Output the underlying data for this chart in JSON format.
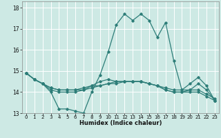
{
  "title": "",
  "xlabel": "Humidex (Indice chaleur)",
  "ylabel": "",
  "background_color": "#cde9e4",
  "grid_color": "#ffffff",
  "line_color": "#2d7d78",
  "xlim": [
    -0.5,
    23.5
  ],
  "ylim": [
    13.0,
    18.3
  ],
  "yticks": [
    13,
    14,
    15,
    16,
    17,
    18
  ],
  "xticks": [
    0,
    1,
    2,
    3,
    4,
    5,
    6,
    7,
    8,
    9,
    10,
    11,
    12,
    13,
    14,
    15,
    16,
    17,
    18,
    19,
    20,
    21,
    22,
    23
  ],
  "series": [
    [
      14.9,
      14.6,
      14.4,
      14.0,
      13.2,
      13.2,
      13.1,
      13.0,
      14.0,
      14.8,
      15.9,
      17.2,
      17.7,
      17.4,
      17.7,
      17.4,
      16.6,
      17.3,
      15.5,
      14.1,
      14.4,
      14.7,
      14.3,
      13.6
    ],
    [
      14.9,
      14.6,
      14.4,
      14.2,
      14.1,
      14.1,
      14.1,
      14.1,
      14.2,
      14.3,
      14.4,
      14.5,
      14.5,
      14.5,
      14.5,
      14.4,
      14.3,
      14.2,
      14.1,
      14.1,
      14.1,
      14.1,
      13.9,
      13.7
    ],
    [
      14.9,
      14.6,
      14.4,
      14.2,
      14.1,
      14.1,
      14.1,
      14.2,
      14.3,
      14.3,
      14.4,
      14.4,
      14.5,
      14.5,
      14.5,
      14.4,
      14.3,
      14.1,
      14.0,
      14.0,
      14.0,
      14.0,
      13.8,
      13.6
    ],
    [
      14.9,
      14.6,
      14.4,
      14.1,
      14.0,
      14.0,
      14.0,
      14.1,
      14.3,
      14.5,
      14.6,
      14.5,
      14.5,
      14.5,
      14.5,
      14.4,
      14.3,
      14.1,
      14.0,
      14.0,
      14.1,
      14.4,
      14.1,
      13.6
    ]
  ],
  "xlabel_fontsize": 6.0,
  "ytick_fontsize": 5.5,
  "xtick_fontsize": 5.0,
  "marker_size": 1.8,
  "linewidth": 0.9
}
